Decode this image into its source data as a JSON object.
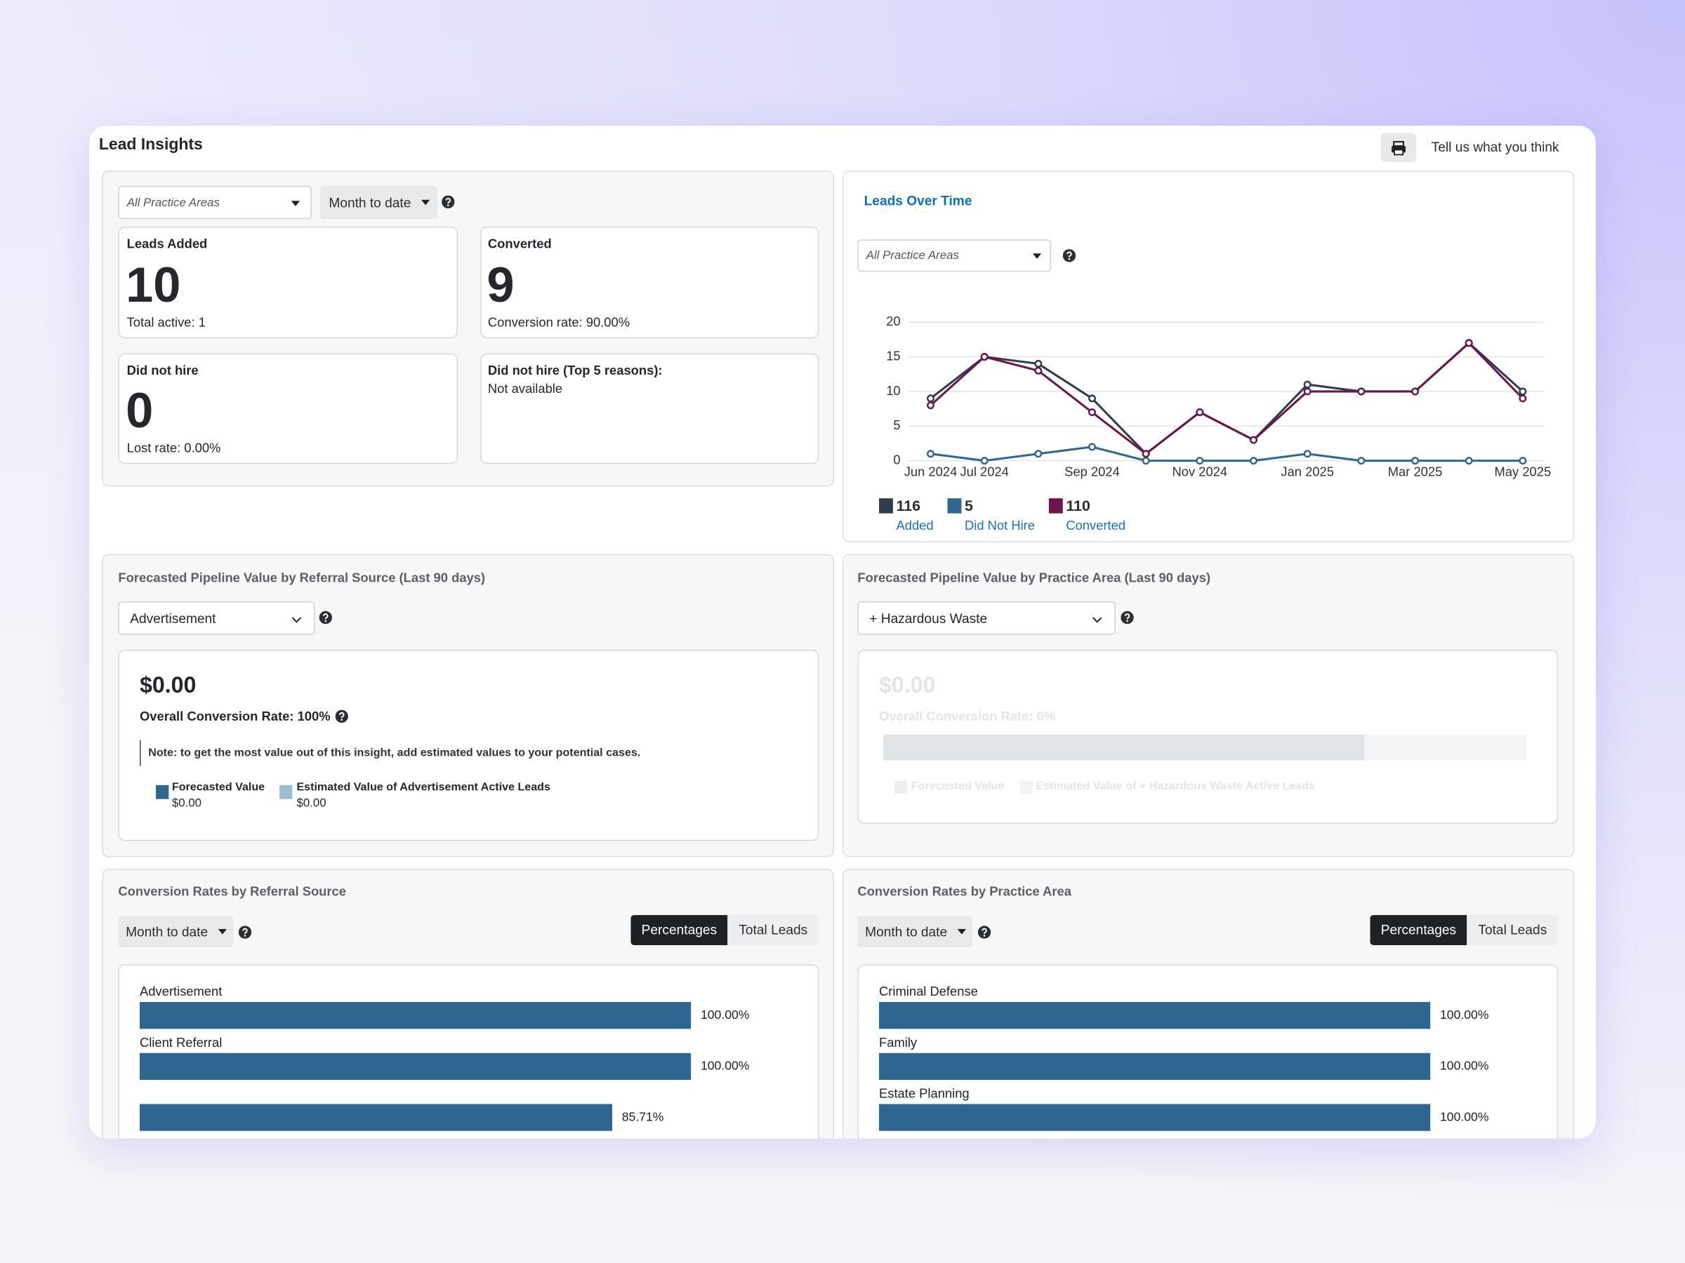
{
  "header": {
    "title": "Lead Insights",
    "feedback": "Tell us what you think"
  },
  "summary": {
    "filters": [
      "All Practice Areas",
      "Month to date"
    ],
    "cards": [
      {
        "label": "Leads Added",
        "value": 10,
        "note": "Total active: 1"
      },
      {
        "label": "Converted",
        "value": 9,
        "note": "Conversion rate: 90.00%"
      },
      {
        "label": "Did not hire",
        "value": 0,
        "note": "Lost rate: 0.00%"
      }
    ],
    "reasons": {
      "label": "Did not hire (Top 5 reasons):",
      "text": "Not available"
    }
  },
  "leads_over_time": {
    "filter": "All Practice Areas"
  },
  "pipeline": [
    {
      "title": "Forecasted Pipeline Value by Referral Source",
      "period": "(Last 90 days)",
      "select": "Advertisement",
      "amount": "$0.00",
      "rate_label": "Overall Conversion Rate:",
      "rate": "100%",
      "note": "Note: to get the most value out of this insight, add estimated values to your potential cases.",
      "legend": [
        {
          "label": "Forecasted Value",
          "value": "$0.00"
        },
        {
          "label": "Estimated Value of Advertisement Active Leads",
          "value": "$0.00"
        }
      ]
    },
    {
      "title": "Forecasted Pipeline Value by Practice Area",
      "period": "(Last 90 days)",
      "select": "+ Hazardous Waste",
      "amount": "$0.00",
      "rate_label": "Overall Conversion Rate:",
      "rate": "0%",
      "legend": [
        {
          "label": "Forecasted Value"
        },
        {
          "label": "Estimated Value of + Hazardous Waste Active Leads"
        }
      ]
    }
  ],
  "conversion": [
    {
      "filter": "Month to date",
      "toggle": [
        "Percentages",
        "Total Leads"
      ]
    },
    {
      "filter": "Month to date",
      "toggle": [
        "Percentages",
        "Total Leads"
      ]
    }
  ],
  "chart_data": [
    {
      "type": "line",
      "title": "Leads Over Time",
      "categories": [
        "Jun 2024",
        "Jul 2024",
        null,
        "Sep 2024",
        null,
        "Nov 2024",
        null,
        "Jan 2025",
        null,
        "Mar 2025",
        null,
        "May 2025"
      ],
      "ylim": [
        0,
        20
      ],
      "yticks": [
        0,
        5,
        10,
        15,
        20
      ],
      "grid": true,
      "series": [
        {
          "name": "Added",
          "total": 116,
          "color": "#2e3e50",
          "values": [
            9,
            15,
            14,
            9,
            1,
            7,
            3,
            11,
            10,
            10,
            17,
            10
          ]
        },
        {
          "name": "Did Not Hire",
          "total": 5,
          "color": "#2f6690",
          "values": [
            1,
            0,
            1,
            2,
            0,
            0,
            0,
            1,
            0,
            0,
            0,
            0
          ]
        },
        {
          "name": "Converted",
          "total": 110,
          "color": "#6c1650",
          "values": [
            8,
            15,
            13,
            7,
            1,
            7,
            3,
            10,
            10,
            10,
            17,
            9
          ]
        }
      ]
    },
    {
      "type": "bar",
      "orientation": "horizontal",
      "title": "Conversion Rates by Referral Source",
      "categories": [
        "Advertisement",
        "Client Referral",
        null
      ],
      "values": [
        100,
        100,
        85.71
      ],
      "value_labels": [
        "100.00%",
        "100.00%",
        "85.71%"
      ],
      "color": "#2f6690",
      "xlim": [
        0,
        100
      ]
    },
    {
      "type": "bar",
      "orientation": "horizontal",
      "title": "Conversion Rates by Practice Area",
      "categories": [
        "Criminal Defense",
        "Family",
        "Estate Planning"
      ],
      "values": [
        100,
        100,
        100
      ],
      "value_labels": [
        "100.00%",
        "100.00%",
        "100.00%"
      ],
      "color": "#2f6690",
      "xlim": [
        0,
        100
      ]
    }
  ]
}
